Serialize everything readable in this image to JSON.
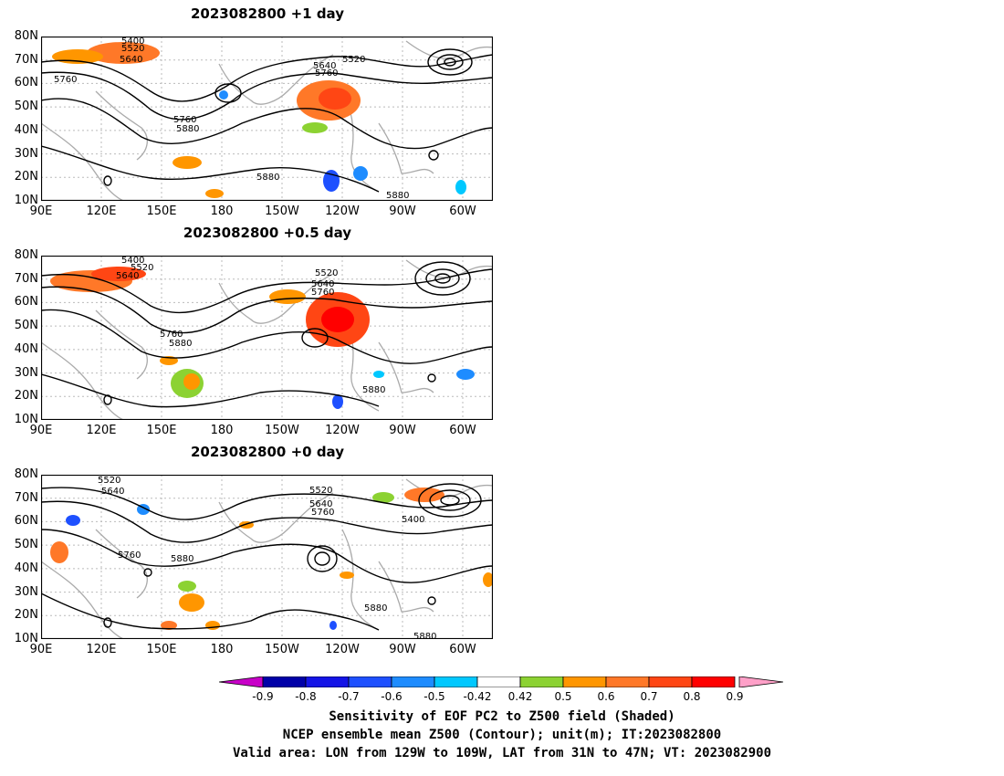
{
  "panels": [
    {
      "title": "2023082800  +1 day"
    },
    {
      "title": "2023082800  +0.5 day"
    },
    {
      "title": "2023082800  +0 day"
    }
  ],
  "lat_labels": [
    "80N",
    "70N",
    "60N",
    "50N",
    "40N",
    "30N",
    "20N",
    "10N"
  ],
  "lon_labels": [
    "90E",
    "120E",
    "150E",
    "180",
    "150W",
    "120W",
    "90W",
    "60W"
  ],
  "contour_labels": {
    "p1": [
      "5400",
      "5520",
      "5640",
      "5760",
      "5760",
      "5880",
      "5880",
      "5880",
      "5520",
      "5640",
      "5760"
    ],
    "p2": [
      "5400",
      "5520",
      "5640",
      "5760",
      "5880",
      "5880",
      "5520",
      "5640",
      "5760"
    ],
    "p3": [
      "5520",
      "5640",
      "5760",
      "5880",
      "5880",
      "5880",
      "5520",
      "5640",
      "5760",
      "5400"
    ]
  },
  "colorbar": {
    "labels": [
      "-0.9",
      "-0.8",
      "-0.7",
      "-0.6",
      "-0.5",
      "-0.42",
      "0.42",
      "0.5",
      "0.6",
      "0.7",
      "0.8",
      "0.9"
    ],
    "colors": [
      "#0000a8",
      "#1414e6",
      "#1e50ff",
      "#1e8cff",
      "#00c8ff",
      "#ffffff",
      "#8cd232",
      "#ff9600",
      "#ff7828",
      "#ff4614",
      "#ff0000"
    ],
    "low_end_color": "#c800c8",
    "high_end_color": "#ffa0c8"
  },
  "captions": {
    "line1": "Sensitivity of EOF PC2 to Z500 field (Shaded)",
    "line2": "NCEP ensemble mean Z500 (Contour); unit(m); IT:2023082800",
    "line3": "Valid area: LON from 129W to 109W, LAT from 31N to 47N; VT: 2023082900"
  }
}
